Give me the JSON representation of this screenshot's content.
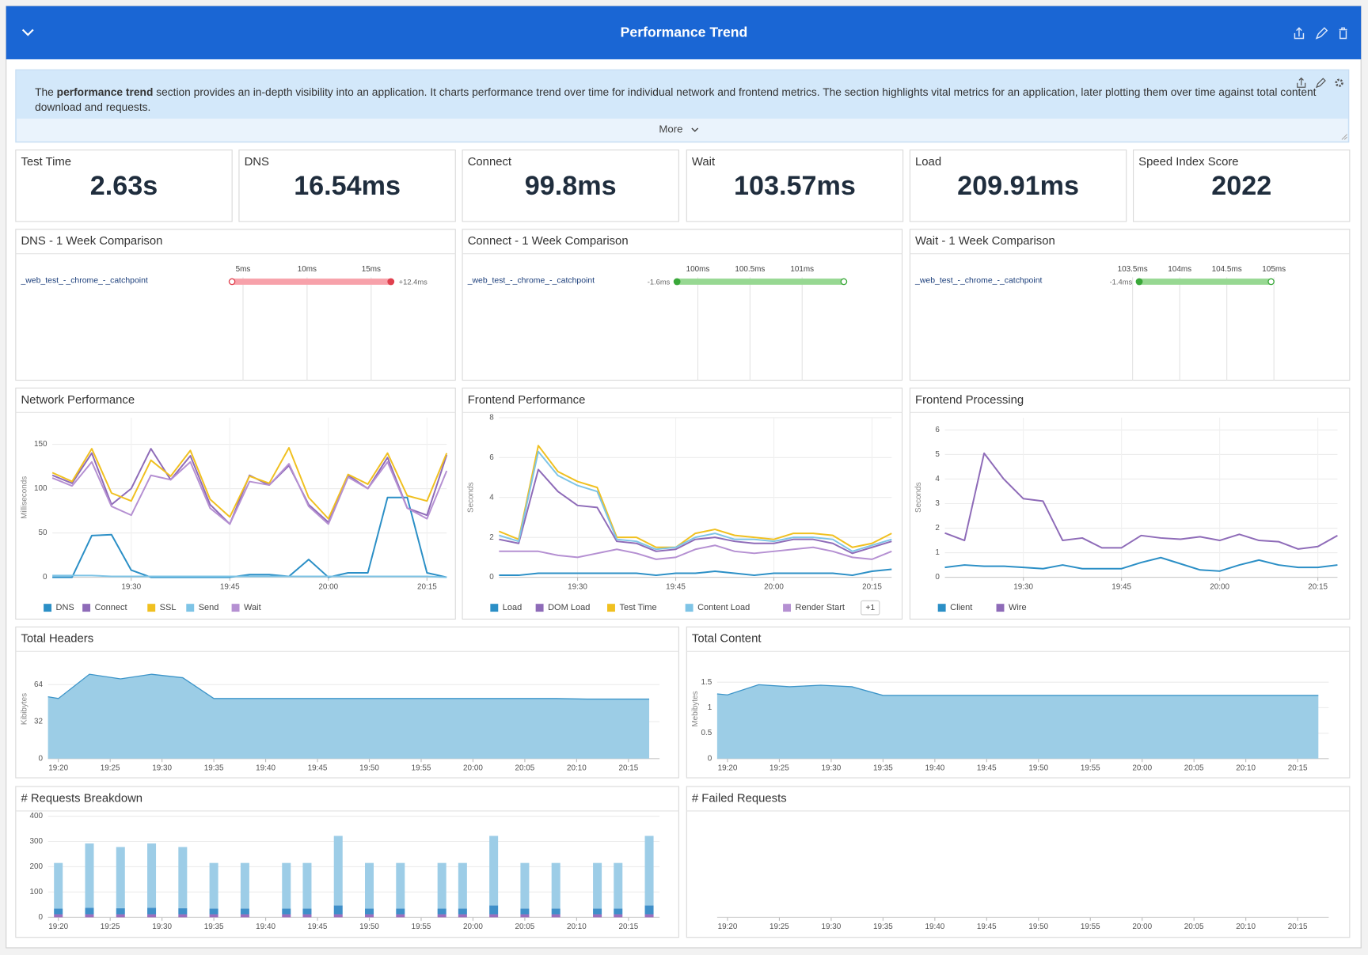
{
  "header": {
    "title": "Performance Trend"
  },
  "description": {
    "lead": "The ",
    "bold": "performance trend",
    "rest": " section provides an in-depth visibility into an application. It charts performance trend over time for individual network and frontend metrics. The section highlights vital metrics for an application, later plotting them over time against total content download and requests.",
    "more": "More"
  },
  "kpis": [
    {
      "label": "Test Time",
      "value": "2.63s"
    },
    {
      "label": "DNS",
      "value": "16.54ms"
    },
    {
      "label": "Connect",
      "value": "99.8ms"
    },
    {
      "label": "Wait",
      "value": "103.57ms"
    },
    {
      "label": "Load",
      "value": "209.91ms"
    },
    {
      "label": "Speed Index Score",
      "value": "2022"
    }
  ],
  "chart_data": [
    {
      "type": "range",
      "title": "DNS - 1 Week Comparison",
      "xlim": [
        3.6,
        21.1
      ],
      "xticks": [
        {
          "value": 5,
          "label": "5ms"
        },
        {
          "value": 10,
          "label": "10ms"
        },
        {
          "value": 15,
          "label": "15ms"
        }
      ],
      "series": [
        {
          "name": "_web_test_-_chrome_-_catchpoint",
          "values": [
            4.14,
            16.54
          ],
          "color": "#f7a1aa",
          "marker_color": "#e0404e",
          "delta_label": "+12.4ms"
        }
      ]
    },
    {
      "type": "range",
      "title": "Connect - 1 Week Comparison",
      "xlim": [
        99.75,
        101.9
      ],
      "xticks": [
        {
          "value": 100,
          "label": "100ms"
        },
        {
          "value": 100.5,
          "label": "100.5ms"
        },
        {
          "value": 101,
          "label": "101ms"
        }
      ],
      "series": [
        {
          "name": "_web_test_-_chrome_-_catchpoint",
          "values": [
            101.4,
            99.8
          ],
          "color": "#97d892",
          "marker_color": "#3aa83a",
          "delta_label": "-1.6ms"
        }
      ]
    },
    {
      "type": "range",
      "title": "Wait - 1 Week Comparison",
      "xlim": [
        103.35,
        105.73
      ],
      "xticks": [
        {
          "value": 103.5,
          "label": "103.5ms"
        },
        {
          "value": 104,
          "label": "104ms"
        },
        {
          "value": 104.5,
          "label": "104.5ms"
        },
        {
          "value": 105,
          "label": "105ms"
        }
      ],
      "series": [
        {
          "name": "_web_test_-_chrome_-_catchpoint",
          "values": [
            104.97,
            103.57
          ],
          "color": "#97d892",
          "marker_color": "#3aa83a",
          "delta_label": "-1.4ms"
        }
      ]
    },
    {
      "type": "line",
      "title": "Network Performance",
      "ylabel": "Milliseconds",
      "grid": true,
      "legend": "bottom",
      "xlim": [
        "19:18",
        "20:18"
      ],
      "xticks": [
        "19:30",
        "19:45",
        "20:00",
        "20:15"
      ],
      "ylim": [
        0,
        180
      ],
      "yticks": [
        0,
        50,
        100,
        150
      ],
      "x": [
        "19:18",
        "19:21",
        "19:24",
        "19:27",
        "19:30",
        "19:33",
        "19:36",
        "19:39",
        "19:42",
        "19:45",
        "19:48",
        "19:51",
        "19:54",
        "19:57",
        "20:00",
        "20:03",
        "20:06",
        "20:09",
        "20:12",
        "20:15",
        "20:18"
      ],
      "series": [
        {
          "name": "DNS",
          "color": "#2b8fc6",
          "values": [
            0,
            0,
            47,
            48,
            8,
            0,
            0,
            0,
            0,
            0,
            3,
            3,
            1,
            20,
            0,
            5,
            5,
            90,
            90,
            5,
            0
          ]
        },
        {
          "name": "Connect",
          "color": "#8e6bb8",
          "values": [
            115,
            106,
            140,
            82,
            100,
            145,
            110,
            137,
            82,
            60,
            115,
            104,
            126,
            82,
            62,
            115,
            100,
            135,
            78,
            70,
            138
          ]
        },
        {
          "name": "SSL",
          "color": "#f0c020",
          "values": [
            118,
            108,
            145,
            95,
            86,
            132,
            114,
            143,
            88,
            68,
            114,
            106,
            146,
            90,
            66,
            116,
            105,
            140,
            92,
            86,
            140
          ]
        },
        {
          "name": "Send",
          "color": "#7ec4e6",
          "values": [
            2,
            2,
            2,
            1,
            1,
            1,
            1,
            1,
            1,
            1,
            1,
            1,
            1,
            1,
            1,
            1,
            1,
            1,
            1,
            1,
            0
          ]
        },
        {
          "name": "Wait",
          "color": "#b590d2",
          "values": [
            112,
            103,
            130,
            80,
            70,
            115,
            110,
            130,
            78,
            60,
            108,
            104,
            128,
            80,
            60,
            113,
            100,
            130,
            78,
            66,
            120
          ]
        }
      ]
    },
    {
      "type": "line",
      "title": "Frontend Performance",
      "ylabel": "Seconds",
      "grid": true,
      "legend": "bottom",
      "legend_more": "+1",
      "xlim": [
        "19:18",
        "20:18"
      ],
      "xticks": [
        "19:30",
        "19:45",
        "20:00",
        "20:15"
      ],
      "ylim": [
        0,
        8
      ],
      "yticks": [
        0,
        2,
        4,
        6,
        8
      ],
      "x": [
        "19:18",
        "19:21",
        "19:24",
        "19:27",
        "19:30",
        "19:33",
        "19:36",
        "19:39",
        "19:42",
        "19:45",
        "19:48",
        "19:51",
        "19:54",
        "19:57",
        "20:00",
        "20:03",
        "20:06",
        "20:09",
        "20:12",
        "20:15",
        "20:18"
      ],
      "series": [
        {
          "name": "Load",
          "color": "#2b8fc6",
          "values": [
            0.1,
            0.1,
            0.2,
            0.2,
            0.2,
            0.2,
            0.2,
            0.2,
            0.1,
            0.2,
            0.2,
            0.3,
            0.2,
            0.1,
            0.2,
            0.2,
            0.2,
            0.2,
            0.1,
            0.3,
            0.4
          ]
        },
        {
          "name": "DOM Load",
          "color": "#8e6bb8",
          "values": [
            1.9,
            1.7,
            5.4,
            4.3,
            3.6,
            3.5,
            1.8,
            1.7,
            1.3,
            1.4,
            1.9,
            2.0,
            1.8,
            1.7,
            1.7,
            1.9,
            1.9,
            1.7,
            1.2,
            1.5,
            1.8
          ]
        },
        {
          "name": "Test Time",
          "color": "#f0c020",
          "values": [
            2.3,
            1.9,
            6.6,
            5.3,
            4.8,
            4.5,
            2.0,
            2.0,
            1.5,
            1.5,
            2.2,
            2.4,
            2.1,
            2.0,
            1.9,
            2.2,
            2.2,
            2.1,
            1.5,
            1.7,
            2.2
          ]
        },
        {
          "name": "Content Load",
          "color": "#7ec4e6",
          "values": [
            2.1,
            1.8,
            6.3,
            5.1,
            4.6,
            4.3,
            1.9,
            1.8,
            1.4,
            1.5,
            2.0,
            2.2,
            1.9,
            1.9,
            1.8,
            2.0,
            2.0,
            1.9,
            1.3,
            1.6,
            1.9
          ]
        },
        {
          "name": "Render Start",
          "color": "#b590d2",
          "values": [
            1.3,
            1.3,
            1.3,
            1.1,
            1.0,
            1.2,
            1.4,
            1.2,
            0.9,
            1.0,
            1.4,
            1.6,
            1.3,
            1.2,
            1.3,
            1.4,
            1.5,
            1.3,
            1.0,
            0.9,
            1.3
          ]
        }
      ]
    },
    {
      "type": "line",
      "title": "Frontend Processing",
      "ylabel": "Seconds",
      "grid": true,
      "legend": "bottom",
      "xlim": [
        "19:18",
        "20:18"
      ],
      "xticks": [
        "19:30",
        "19:45",
        "20:00",
        "20:15"
      ],
      "ylim": [
        0,
        6.5
      ],
      "yticks": [
        0,
        1,
        2,
        3,
        4,
        5,
        6
      ],
      "x": [
        "19:18",
        "19:21",
        "19:24",
        "19:27",
        "19:30",
        "19:33",
        "19:36",
        "19:39",
        "19:42",
        "19:45",
        "19:48",
        "19:51",
        "19:54",
        "19:57",
        "20:00",
        "20:03",
        "20:06",
        "20:09",
        "20:12",
        "20:15",
        "20:18"
      ],
      "series": [
        {
          "name": "Client",
          "color": "#2b8fc6",
          "values": [
            0.4,
            0.5,
            0.45,
            0.45,
            0.4,
            0.35,
            0.5,
            0.35,
            0.35,
            0.35,
            0.6,
            0.8,
            0.55,
            0.3,
            0.25,
            0.5,
            0.7,
            0.5,
            0.4,
            0.4,
            0.5
          ]
        },
        {
          "name": "Wire",
          "color": "#8e6bb8",
          "values": [
            1.8,
            1.5,
            5.05,
            4.0,
            3.2,
            3.1,
            1.5,
            1.6,
            1.2,
            1.2,
            1.7,
            1.6,
            1.55,
            1.65,
            1.5,
            1.75,
            1.5,
            1.45,
            1.15,
            1.25,
            1.7
          ]
        }
      ]
    },
    {
      "type": "area",
      "title": "Total Headers",
      "ylabel": "Kibibytes",
      "grid": true,
      "color": "#9ccde6",
      "line_color": "#3d95c9",
      "xlim": [
        "19:19",
        "20:18"
      ],
      "xticks": [
        "19:20",
        "19:25",
        "19:30",
        "19:35",
        "19:40",
        "19:45",
        "19:50",
        "19:55",
        "20:00",
        "20:05",
        "20:10",
        "20:15"
      ],
      "ylim": [
        0,
        86
      ],
      "yticks": [
        0,
        32,
        64
      ],
      "x": [
        "19:19",
        "19:20",
        "19:23",
        "19:26",
        "19:29",
        "19:32",
        "19:35",
        "19:38",
        "19:41",
        "19:44",
        "19:47",
        "19:50",
        "19:53",
        "19:56",
        "19:59",
        "20:02",
        "20:05",
        "20:08",
        "20:11",
        "20:14",
        "20:17"
      ],
      "values": [
        53.5,
        52,
        73,
        69,
        73,
        70,
        52,
        52,
        52,
        52,
        52,
        52,
        52,
        52,
        52,
        52,
        52,
        52,
        51.5,
        51.5,
        51.5
      ]
    },
    {
      "type": "area",
      "title": "Total Content",
      "ylabel": "Mebibytes",
      "grid": true,
      "color": "#9ccde6",
      "line_color": "#3d95c9",
      "xlim": [
        "19:19",
        "20:18"
      ],
      "xticks": [
        "19:20",
        "19:25",
        "19:30",
        "19:35",
        "19:40",
        "19:45",
        "19:50",
        "19:55",
        "20:00",
        "20:05",
        "20:10",
        "20:15"
      ],
      "ylim": [
        0,
        1.95
      ],
      "yticks": [
        0,
        0.5,
        1,
        1.5
      ],
      "x": [
        "19:19",
        "19:20",
        "19:23",
        "19:26",
        "19:29",
        "19:32",
        "19:35",
        "19:38",
        "19:41",
        "19:44",
        "19:47",
        "19:50",
        "19:53",
        "19:56",
        "19:59",
        "20:02",
        "20:05",
        "20:08",
        "20:11",
        "20:14",
        "20:17"
      ],
      "values": [
        1.27,
        1.25,
        1.45,
        1.41,
        1.44,
        1.41,
        1.24,
        1.24,
        1.24,
        1.24,
        1.24,
        1.24,
        1.24,
        1.24,
        1.24,
        1.24,
        1.24,
        1.24,
        1.24,
        1.24,
        1.24
      ]
    },
    {
      "type": "stacked_bar",
      "title": "# Requests Breakdown",
      "grid": true,
      "xlim": [
        "19:19",
        "20:18"
      ],
      "xticks": [
        "19:20",
        "19:25",
        "19:30",
        "19:35",
        "19:40",
        "19:45",
        "19:50",
        "19:55",
        "20:00",
        "20:05",
        "20:10",
        "20:15"
      ],
      "ylim": [
        0,
        400
      ],
      "yticks": [
        0,
        100,
        200,
        300,
        400
      ],
      "x": [
        "19:20",
        "19:23",
        "19:26",
        "19:29",
        "19:32",
        "19:35",
        "19:38",
        "19:42",
        "19:44",
        "19:47",
        "19:50",
        "19:53",
        "19:57",
        "19:59",
        "20:02",
        "20:05",
        "20:08",
        "20:12",
        "20:14",
        "20:17"
      ],
      "series": [
        {
          "color": "#9b6fbd",
          "values": [
            12,
            12,
            12,
            12,
            12,
            12,
            12,
            12,
            12,
            12,
            12,
            12,
            12,
            12,
            12,
            12,
            12,
            12,
            12,
            12
          ]
        },
        {
          "color": "#3f8fc9",
          "values": [
            22,
            26,
            24,
            26,
            24,
            22,
            22,
            22,
            22,
            35,
            22,
            22,
            22,
            22,
            35,
            22,
            22,
            22,
            22,
            35
          ]
        },
        {
          "color": "#9dcde7",
          "values": [
            181,
            254,
            242,
            254,
            242,
            181,
            181,
            181,
            181,
            275,
            181,
            181,
            181,
            181,
            275,
            181,
            181,
            181,
            181,
            275
          ]
        }
      ]
    },
    {
      "type": "bar",
      "title": "# Failed Requests",
      "xlim": [
        "19:19",
        "20:18"
      ],
      "xticks": [
        "19:20",
        "19:25",
        "19:30",
        "19:35",
        "19:40",
        "19:45",
        "19:50",
        "19:55",
        "20:00",
        "20:05",
        "20:10",
        "20:15"
      ]
    }
  ]
}
